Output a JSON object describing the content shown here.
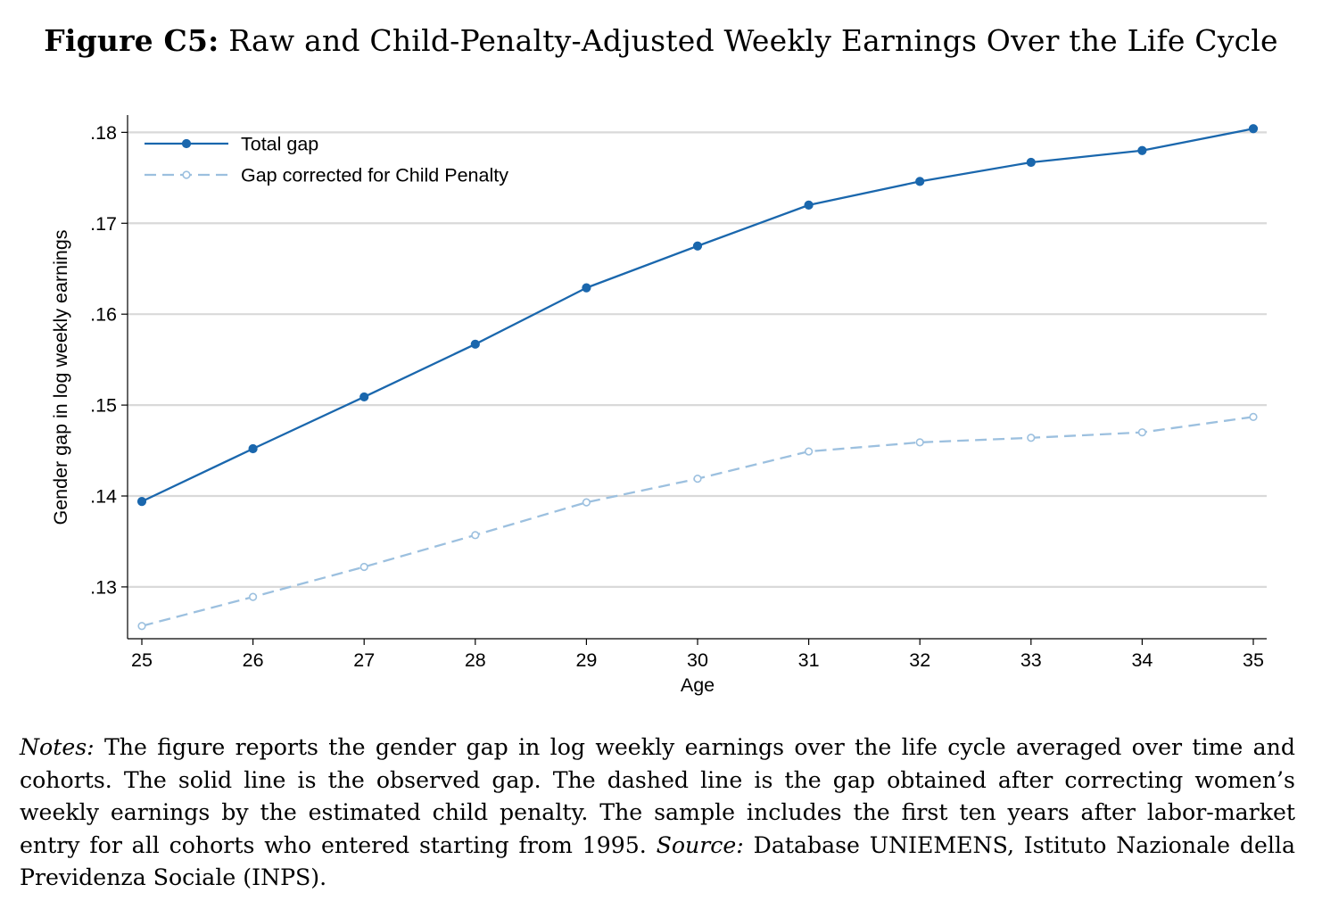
{
  "figure": {
    "label": "Figure C5:",
    "title": "Raw and Child-Penalty-Adjusted Weekly Earnings Over the Life Cycle"
  },
  "notes": {
    "notes_label": "Notes:",
    "notes_text": "The figure reports the gender gap in log weekly earnings over the life cycle averaged over time and cohorts. The solid line is the observed gap. The dashed line is the gap obtained after correcting women’s weekly earnings by the estimated child penalty. The sample includes the first ten years after labor-market entry for all cohorts who entered starting from 1995.",
    "source_label": "Source:",
    "source_text": "Database UNIEMENS, Istituto Nazionale della Previdenza Sociale (INPS)."
  },
  "chart_data": {
    "type": "line",
    "xlabel": "Age",
    "ylabel": "Gender gap in log weekly earnings",
    "x": [
      25,
      26,
      27,
      28,
      29,
      30,
      31,
      32,
      33,
      34,
      35
    ],
    "xticks": [
      "25",
      "26",
      "27",
      "28",
      "29",
      "30",
      "31",
      "32",
      "33",
      "34",
      "35"
    ],
    "yticks": [
      0.13,
      0.14,
      0.15,
      0.16,
      0.17,
      0.18
    ],
    "ytick_labels": [
      ".13",
      ".14",
      ".15",
      ".16",
      ".17",
      ".18"
    ],
    "xlim": [
      25,
      35
    ],
    "ylim": [
      0.1243,
      0.1819
    ],
    "grid": true,
    "legend_position": "top-left",
    "series": [
      {
        "name": "Total gap",
        "style": "solid",
        "marker": "filled-circle",
        "color": "#1a67ad",
        "values": [
          0.1394,
          0.1452,
          0.1509,
          0.1567,
          0.1629,
          0.1675,
          0.172,
          0.1746,
          0.1767,
          0.178,
          0.1804
        ]
      },
      {
        "name": "Gap corrected for Child Penalty",
        "style": "dashed",
        "marker": "hollow-circle",
        "color": "#9cc0df",
        "values": [
          0.1257,
          0.1289,
          0.1322,
          0.1357,
          0.1393,
          0.1419,
          0.1449,
          0.1459,
          0.1464,
          0.147,
          0.1487
        ]
      }
    ]
  }
}
